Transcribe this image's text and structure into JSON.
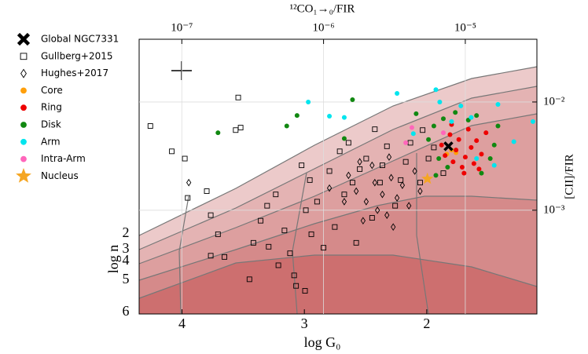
{
  "chart_data": {
    "type": "scatter",
    "x_label": "¹²CO₁→₀/FIR",
    "y_label": "[CII]/FIR",
    "g0_label": "log G₀",
    "n_label": "log n",
    "xlog": true,
    "ylog": true,
    "xlim": [
      5e-08,
      3.2e-05
    ],
    "ylim": [
      0.00011,
      0.038
    ],
    "xticks": [
      {
        "value": 1e-07,
        "label": "10⁻⁷"
      },
      {
        "value": 1e-06,
        "label": "10⁻⁶"
      },
      {
        "value": 1e-05,
        "label": "10⁻⁵"
      }
    ],
    "yticks": [
      {
        "value": 0.001,
        "label": "10⁻³"
      },
      {
        "value": 0.01,
        "label": "10⁻²"
      }
    ],
    "g0lim": [
      4.35,
      1.1
    ],
    "g0ticks": [
      4,
      3,
      2
    ],
    "n_ticks": [
      2,
      3,
      4,
      5,
      6
    ],
    "grid": true,
    "series": [
      {
        "name": "Global NGC7331",
        "marker": "x",
        "color": "#000000",
        "x": [
          7.6e-06
        ],
        "y": [
          0.0039
        ]
      },
      {
        "name": "Gullberg+2015",
        "marker": "square",
        "color": "#000000",
        "x": [
          6e-08,
          8.5e-08,
          1.05e-07,
          1.1e-07,
          1.5e-07,
          1.8e-07,
          1.6e-07,
          2e-07,
          2.5e-07,
          2.4e-07,
          2.6e-07,
          3e-07,
          3.2e-07,
          3.6e-07,
          4e-07,
          4.1e-07,
          4.6e-07,
          5.3e-07,
          5.8e-07,
          6.2e-07,
          6.4e-07,
          7e-07,
          7.5e-07,
          8e-07,
          8.2e-07,
          9e-07,
          1e-06,
          1.1e-06,
          1.2e-06,
          1.3e-06,
          1.4e-06,
          1.5e-06,
          1.6e-06,
          1.7e-06,
          1.8e-06,
          2e-06,
          2.2e-06,
          2.3e-06,
          2.5e-06,
          2.6e-06,
          2.8e-06,
          3.2e-06,
          3.5e-06,
          3.8e-06,
          4.1e-06,
          4.8e-06,
          5e-06,
          5.5e-06,
          6e-06,
          7e-06,
          7.4e-07,
          4.8e-07,
          1.6e-07
        ],
        "y": [
          0.006,
          0.0035,
          0.003,
          0.0013,
          0.0015,
          0.0006,
          0.00038,
          0.00037,
          0.011,
          0.0055,
          0.0058,
          0.00023,
          0.0005,
          0.0008,
          0.0011,
          0.00046,
          0.0014,
          0.00065,
          0.0004,
          0.00025,
          0.0002,
          0.0026,
          0.001,
          0.0019,
          0.0006,
          0.0012,
          0.00045,
          0.0023,
          0.0007,
          0.0035,
          0.0014,
          0.0042,
          0.0018,
          0.0005,
          0.0024,
          0.003,
          0.00085,
          0.0056,
          0.0018,
          0.0026,
          0.0039,
          0.0011,
          0.0019,
          0.0028,
          0.0042,
          0.0018,
          0.0055,
          0.003,
          0.0038,
          0.0022,
          0.00018,
          0.00031,
          0.0009
        ]
      },
      {
        "name": "Hughes+2017",
        "marker": "diamond",
        "color": "#000000",
        "x": [
          1.12e-07,
          1.1e-06,
          1.4e-06,
          1.5e-06,
          1.7e-06,
          1.9e-06,
          2e-06,
          2.2e-06,
          2.4e-06,
          2.6e-06,
          2.8e-06,
          3e-06,
          3.3e-06,
          3.6e-06,
          4e-06,
          4.4e-06,
          4.8e-06,
          3.1e-06,
          1.8e-06,
          2.3e-06,
          2.9e-06
        ],
        "y": [
          0.0018,
          0.0016,
          0.0012,
          0.0021,
          0.0015,
          0.0008,
          0.0012,
          0.0026,
          0.001,
          0.0014,
          0.0009,
          0.002,
          0.0013,
          0.0017,
          0.0011,
          0.0023,
          0.0015,
          0.0007,
          0.0028,
          0.0018,
          0.0031
        ]
      },
      {
        "name": "Core",
        "marker": "circle",
        "color": "#ff9f0a",
        "x": [
          7.4e-06,
          8e-06,
          8.6e-06
        ],
        "y": [
          0.0033,
          0.0036,
          0.0034
        ]
      },
      {
        "name": "Ring",
        "marker": "circle",
        "color": "#ee0000",
        "x": [
          6.8e-06,
          7.2e-06,
          7.8e-06,
          8.2e-06,
          8.6e-06,
          9e-06,
          9.5e-06,
          1e-05,
          1.05e-05,
          1.1e-05,
          1.15e-05,
          1.2e-05,
          1.3e-05,
          1.4e-05,
          8e-06,
          9.8e-06,
          1.25e-05
        ],
        "y": [
          0.004,
          0.0032,
          0.005,
          0.0028,
          0.0036,
          0.0045,
          0.0025,
          0.0031,
          0.0056,
          0.0038,
          0.0027,
          0.0044,
          0.0033,
          0.0052,
          0.0062,
          0.0022,
          0.0024
        ]
      },
      {
        "name": "Disk",
        "marker": "circle",
        "color": "#118811",
        "x": [
          1.8e-07,
          5.5e-07,
          6.5e-07,
          1.6e-06,
          1.4e-06,
          4.5e-06,
          5.5e-06,
          6e-06,
          6.5e-06,
          7e-06,
          7.5e-06,
          8.5e-06,
          1.05e-05,
          1.2e-05,
          1.3e-05,
          1.5e-05,
          1.6e-05,
          6.2e-06,
          1.7e-05
        ],
        "y": [
          0.0052,
          0.006,
          0.0075,
          0.0105,
          0.0046,
          0.0078,
          0.0045,
          0.006,
          0.003,
          0.007,
          0.0025,
          0.008,
          0.0068,
          0.0075,
          0.0022,
          0.003,
          0.004,
          0.0021,
          0.006
        ]
      },
      {
        "name": "Arm",
        "marker": "circle",
        "color": "#00e5ee",
        "x": [
          7.8e-07,
          1.1e-06,
          1.4e-06,
          3.3e-06,
          6.2e-06,
          6.6e-06,
          8e-06,
          9.3e-06,
          1.1e-05,
          1.7e-05,
          3e-05,
          4.3e-06,
          1.6e-05,
          2.2e-05,
          1.2e-05
        ],
        "y": [
          0.01,
          0.0074,
          0.0072,
          0.012,
          0.013,
          0.01,
          0.0066,
          0.0092,
          0.0072,
          0.0095,
          0.0066,
          0.0051,
          0.0026,
          0.0043,
          0.003
        ]
      },
      {
        "name": "Intra-Arm",
        "marker": "circle",
        "color": "#ff66bb",
        "x": [
          4.2e-06,
          3.8e-06,
          7e-06
        ],
        "y": [
          0.0058,
          0.0042,
          0.0052
        ]
      },
      {
        "name": "Nucleus",
        "marker": "star",
        "color": "#f5a623",
        "x": [
          5.4e-06
        ],
        "y": [
          0.00195
        ]
      }
    ]
  }
}
